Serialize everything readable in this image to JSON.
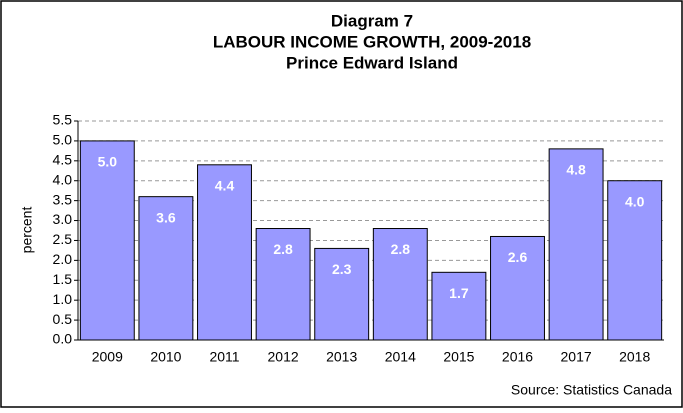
{
  "chart_data": {
    "type": "bar",
    "title": [
      "Diagram 7",
      "LABOUR INCOME GROWTH, 2009-2018",
      "Prince Edward Island"
    ],
    "y_label": "percent",
    "source": "Source: Statistics Canada",
    "categories": [
      "2009",
      "2010",
      "2011",
      "2012",
      "2013",
      "2014",
      "2015",
      "2016",
      "2017",
      "2018"
    ],
    "values": [
      5.0,
      3.6,
      4.4,
      2.8,
      2.3,
      2.8,
      1.7,
      2.6,
      4.8,
      4.0
    ],
    "value_labels": [
      "5.0",
      "3.6",
      "4.4",
      "2.8",
      "2.3",
      "2.8",
      "1.7",
      "2.6",
      "4.8",
      "4.0"
    ],
    "color": "#9999ff",
    "ylim": [
      0,
      5.5
    ],
    "yticks": [
      {
        "value": 0,
        "label": "0.0"
      },
      {
        "value": 0.5,
        "label": "0.5"
      },
      {
        "value": 1,
        "label": "1.0"
      },
      {
        "value": 1.5,
        "label": "1.5"
      },
      {
        "value": 2,
        "label": "2.0"
      },
      {
        "value": 2.5,
        "label": "2.5"
      },
      {
        "value": 3,
        "label": "3.0"
      },
      {
        "value": 3.5,
        "label": "3.5"
      },
      {
        "value": 4,
        "label": "4.0"
      },
      {
        "value": 4.5,
        "label": "4.5"
      },
      {
        "value": 5,
        "label": "5.0"
      },
      {
        "value": 5.5,
        "label": "5.5"
      }
    ],
    "grid": true
  }
}
